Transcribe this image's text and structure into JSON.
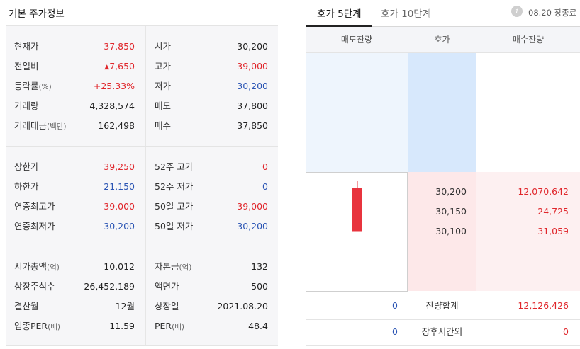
{
  "basic": {
    "title": "기본 주가정보",
    "section1": [
      {
        "label": "현재가",
        "value": "37,850",
        "label2": "시가",
        "value2": "30,200"
      },
      {
        "label": "전일비",
        "arrow": "▲",
        "value": "7,650",
        "label2": "고가",
        "value2": "39,000"
      },
      {
        "label": "등락률",
        "label_suffix": "(%)",
        "value": "+25.33%",
        "label2": "저가",
        "value2": "30,200"
      },
      {
        "label": "거래량",
        "value": "4,328,574",
        "label2": "매도",
        "value2": "37,800"
      },
      {
        "label": "거래대금",
        "label_suffix": "(백만)",
        "value": "162,498",
        "label2": "매수",
        "value2": "37,850"
      }
    ],
    "section2": [
      {
        "label": "상한가",
        "value": "39,250",
        "label2": "52주 고가",
        "value2": "0"
      },
      {
        "label": "하한가",
        "value": "21,150",
        "label2": "52주 저가",
        "value2": "0"
      },
      {
        "label": "연중최고가",
        "value": "39,000",
        "label2": "50일 고가",
        "value2": "39,000"
      },
      {
        "label": "연중최저가",
        "value": "30,200",
        "label2": "50일 저가",
        "value2": "30,200"
      }
    ],
    "section3": [
      {
        "label": "시가총액",
        "label_suffix": "(억)",
        "value": "10,012",
        "label2": "자본금",
        "label2_suffix": "(억)",
        "value2": "132"
      },
      {
        "label": "상장주식수",
        "value": "26,452,189",
        "label2": "액면가",
        "value2": "500"
      },
      {
        "label": "결산월",
        "value": "12월",
        "label2": "상장일",
        "value2": "2021.08.20"
      },
      {
        "label": "업종PER",
        "label_suffix": "(배)",
        "value": "11.59",
        "label2": "PER",
        "label2_suffix": "(배)",
        "value2": "48.4"
      }
    ]
  },
  "orderbook": {
    "tabs": [
      "호가 5단계",
      "호가 10단계"
    ],
    "info_icon": "i",
    "status": "08.20 장종료",
    "headers": [
      "매도잔량",
      "호가",
      "매수잔량"
    ],
    "bids": [
      {
        "price": "30,200",
        "qty": "12,070,642"
      },
      {
        "price": "30,150",
        "qty": "24,725"
      },
      {
        "price": "30,100",
        "qty": "31,059"
      }
    ],
    "total": {
      "ask": "0",
      "label": "잔량합계",
      "bid": "12,126,426"
    },
    "after_hours": {
      "ask": "0",
      "label": "장후시간외",
      "bid": "0"
    },
    "candle_color": "#e8343e",
    "candle": {
      "open": 30200,
      "high": 39000,
      "low": 30200,
      "close": 37850
    }
  }
}
